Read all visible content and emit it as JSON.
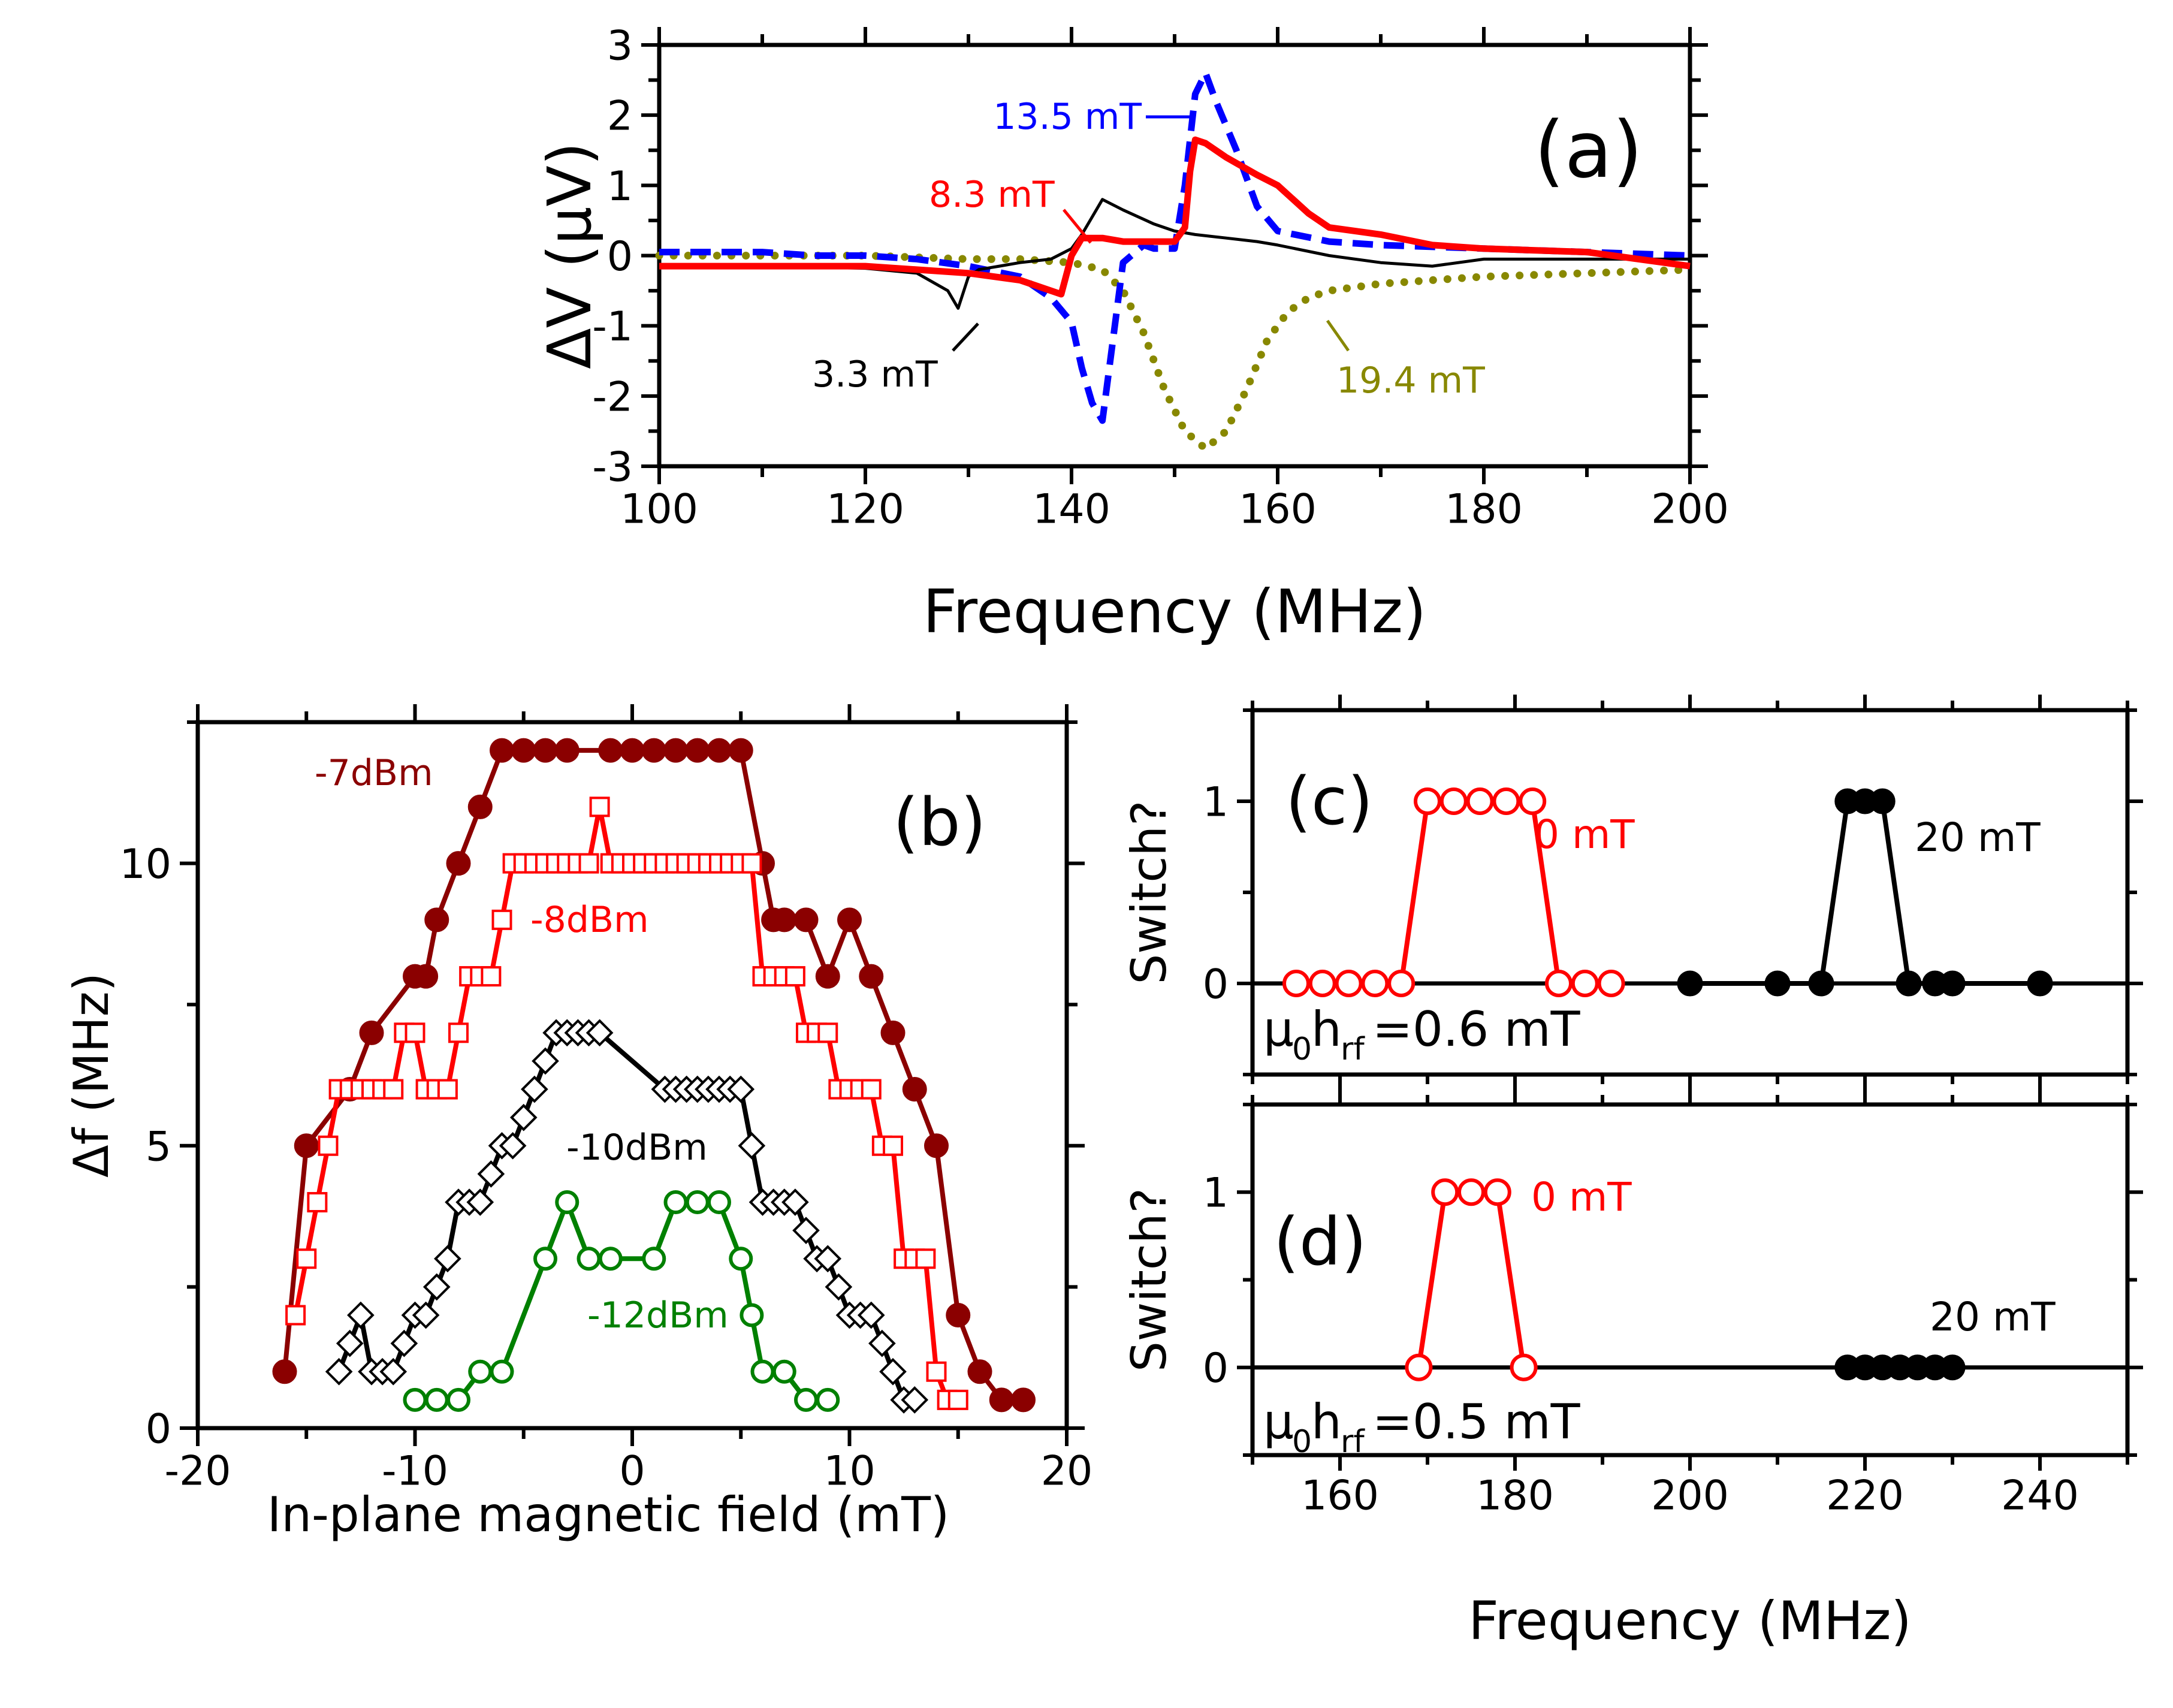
{
  "chart_data": [
    {
      "id": "a",
      "type": "line",
      "panel_label": "(a)",
      "xlabel": "Frequency (MHz)",
      "ylabel": "ΔV (μV)",
      "xlim": [
        100,
        200
      ],
      "ylim": [
        -3,
        3
      ],
      "xticks": [
        100,
        120,
        140,
        160,
        180,
        200
      ],
      "yticks": [
        -3,
        -2,
        -1,
        0,
        1,
        2,
        3
      ],
      "series": [
        {
          "name": "3.3 mT",
          "color": "#000000",
          "style": "thin",
          "x": [
            100,
            110,
            120,
            125,
            128,
            129,
            130,
            131,
            133,
            135,
            138,
            140,
            141,
            142,
            143,
            145,
            148,
            150,
            152,
            155,
            158,
            160,
            165,
            170,
            175,
            180,
            190,
            200
          ],
          "y": [
            -0.15,
            -0.15,
            -0.18,
            -0.25,
            -0.5,
            -0.75,
            -0.3,
            -0.2,
            -0.15,
            -0.1,
            -0.05,
            0.1,
            0.3,
            0.55,
            0.8,
            0.65,
            0.45,
            0.35,
            0.3,
            0.25,
            0.2,
            0.15,
            0.0,
            -0.1,
            -0.15,
            -0.05,
            -0.05,
            -0.05
          ]
        },
        {
          "name": "8.3 mT",
          "color": "#ff0000",
          "style": "thick",
          "x": [
            100,
            110,
            120,
            130,
            135,
            139,
            140,
            141,
            143,
            145,
            148,
            150,
            151,
            151.5,
            152,
            153,
            155,
            158,
            160,
            163,
            165,
            170,
            175,
            180,
            190,
            200
          ],
          "y": [
            -0.15,
            -0.15,
            -0.15,
            -0.25,
            -0.35,
            -0.55,
            0.0,
            0.25,
            0.25,
            0.2,
            0.2,
            0.2,
            0.4,
            1.2,
            1.65,
            1.6,
            1.4,
            1.15,
            1.0,
            0.6,
            0.4,
            0.3,
            0.15,
            0.1,
            0.05,
            -0.15
          ]
        },
        {
          "name": "13.5 mT",
          "color": "#0000ff",
          "style": "dashed",
          "x": [
            100,
            105,
            110,
            115,
            120,
            125,
            130,
            135,
            138,
            140,
            141,
            142,
            143,
            145,
            147,
            148,
            149,
            150,
            151,
            152,
            153,
            154,
            156,
            158,
            160,
            165,
            170,
            180,
            190,
            200
          ],
          "y": [
            0.05,
            0.05,
            0.05,
            0.0,
            0.0,
            -0.05,
            -0.15,
            -0.3,
            -0.6,
            -0.95,
            -1.6,
            -2.1,
            -2.35,
            -0.1,
            0.15,
            0.1,
            0.1,
            0.1,
            1.0,
            2.3,
            2.6,
            2.2,
            1.5,
            0.7,
            0.35,
            0.2,
            0.15,
            0.1,
            0.05,
            0.0
          ]
        },
        {
          "name": "19.4 mT",
          "color": "#888800",
          "style": "dotted",
          "x": [
            100,
            110,
            120,
            130,
            135,
            140,
            143,
            145,
            147,
            149,
            151,
            153,
            155,
            157,
            159,
            161,
            163,
            165,
            170,
            175,
            180,
            190,
            200
          ],
          "y": [
            0.0,
            0.0,
            0.0,
            -0.05,
            -0.05,
            -0.1,
            -0.2,
            -0.5,
            -1.1,
            -1.9,
            -2.5,
            -2.75,
            -2.5,
            -1.9,
            -1.2,
            -0.8,
            -0.6,
            -0.5,
            -0.4,
            -0.35,
            -0.3,
            -0.25,
            -0.2
          ]
        }
      ],
      "annotations": [
        "13.5 mT",
        "8.3 mT",
        "3.3 mT",
        "19.4 mT"
      ]
    },
    {
      "id": "b",
      "type": "line",
      "panel_label": "(b)",
      "xlabel": "In-plane magnetic field (mT)",
      "ylabel": "Δf (MHz)",
      "xlim": [
        -20,
        20
      ],
      "ylim": [
        0,
        12.5
      ],
      "xticks": [
        -20,
        -10,
        0,
        10,
        20
      ],
      "yticks": [
        0,
        5,
        10
      ],
      "series": [
        {
          "name": "-7dBm",
          "color": "#8b0000",
          "marker": "filled-circle",
          "x": [
            -16,
            -15,
            -13,
            -12,
            -10,
            -9.5,
            -9,
            -8,
            -7,
            -6,
            -5,
            -4,
            -3,
            -1,
            0,
            1,
            2,
            3,
            4,
            5,
            6,
            6.5,
            7,
            8,
            9,
            10,
            11,
            12,
            13,
            14,
            15,
            16,
            17,
            18
          ],
          "y": [
            1,
            5,
            6,
            7,
            8,
            8,
            9,
            10,
            11,
            12,
            12,
            12,
            12,
            12,
            12,
            12,
            12,
            12,
            12,
            12,
            10,
            9,
            9,
            9,
            8,
            9,
            8,
            7,
            6,
            5,
            2,
            1,
            0.5,
            0.5
          ]
        },
        {
          "name": "-8dBm",
          "color": "#ff0000",
          "marker": "open-square",
          "x": [
            -15.5,
            -15,
            -14.5,
            -14,
            -13.5,
            -13,
            -12.5,
            -12,
            -11.5,
            -11,
            -10.5,
            -10,
            -9.5,
            -9,
            -8.5,
            -8,
            -7.5,
            -7,
            -6.5,
            -6,
            -5.5,
            -5,
            -4.5,
            -4,
            -3.5,
            -3,
            -2.5,
            -2,
            -1.5,
            -1,
            -0.5,
            0,
            0.5,
            1,
            1.5,
            2,
            2.5,
            3,
            3.5,
            4,
            4.5,
            5,
            5.5,
            6,
            6.5,
            7,
            7.5,
            8,
            8.5,
            9,
            9.5,
            10,
            10.5,
            11,
            11.5,
            12,
            12.5,
            13,
            13.5,
            14,
            14.5,
            15
          ],
          "y": [
            2,
            3,
            4,
            5,
            6,
            6,
            6,
            6,
            6,
            6,
            7,
            7,
            6,
            6,
            6,
            7,
            8,
            8,
            8,
            9,
            10,
            10,
            10,
            10,
            10,
            10,
            10,
            10,
            11,
            10,
            10,
            10,
            10,
            10,
            10,
            10,
            10,
            10,
            10,
            10,
            10,
            10,
            10,
            8,
            8,
            8,
            8,
            7,
            7,
            7,
            6,
            6,
            6,
            6,
            5,
            5,
            3,
            3,
            3,
            1,
            0.5,
            0.5
          ]
        },
        {
          "name": "-10dBm",
          "color": "#000000",
          "marker": "open-diamond",
          "x": [
            -13.5,
            -13,
            -12.5,
            -12,
            -11.5,
            -11,
            -10.5,
            -10,
            -9.5,
            -9,
            -8.5,
            -8,
            -7.5,
            -7,
            -6.5,
            -6,
            -5.5,
            -5,
            -4.5,
            -4,
            -3.5,
            -3,
            -2.5,
            -2,
            -1.5,
            1.5,
            2,
            2.5,
            3,
            3.5,
            4,
            4.5,
            5,
            5.5,
            6,
            6.5,
            7,
            7.5,
            8,
            8.5,
            9,
            9.5,
            10,
            10.5,
            11,
            11.5,
            12,
            12.5,
            13
          ],
          "y": [
            1,
            1.5,
            2,
            1,
            1,
            1,
            1.5,
            2,
            2,
            2.5,
            3,
            4,
            4,
            4,
            4.5,
            5,
            5,
            5.5,
            6,
            6.5,
            7,
            7,
            7,
            7,
            7,
            6,
            6,
            6,
            6,
            6,
            6,
            6,
            6,
            5,
            4,
            4,
            4,
            4,
            3.5,
            3,
            3,
            2.5,
            2,
            2,
            2,
            1.5,
            1,
            0.5,
            0.5
          ]
        },
        {
          "name": "-12dBm",
          "color": "#008000",
          "marker": "open-circle",
          "x": [
            -10,
            -9,
            -8,
            -7,
            -6,
            -4,
            -3,
            -2,
            -1,
            1,
            2,
            3,
            4,
            5,
            5.5,
            6,
            7,
            8,
            9
          ],
          "y": [
            0.5,
            0.5,
            0.5,
            1,
            1,
            3,
            4,
            3,
            3,
            3,
            4,
            4,
            4,
            3,
            2,
            1,
            1,
            0.5,
            0.5
          ]
        }
      ],
      "annotations": [
        "-7dBm",
        "-8dBm",
        "-10dBm",
        "-12dBm"
      ]
    },
    {
      "id": "c",
      "type": "line",
      "panel_label": "(c)",
      "ylabel": "Switch?",
      "xlim": [
        150,
        250
      ],
      "ylim": [
        -0.5,
        1.5
      ],
      "xticks": [
        160,
        180,
        200,
        220,
        240
      ],
      "yticks": [
        0,
        1
      ],
      "series": [
        {
          "name": "0 mT",
          "color": "#ff0000",
          "marker": "open-circle",
          "x": [
            155,
            158,
            161,
            164,
            167,
            170,
            173,
            176,
            179,
            182,
            185,
            188,
            191
          ],
          "y": [
            0,
            0,
            0,
            0,
            0,
            1,
            1,
            1,
            1,
            1,
            0,
            0,
            0
          ]
        },
        {
          "name": "20 mT",
          "color": "#000000",
          "marker": "filled-circle",
          "x": [
            200,
            210,
            215,
            218,
            220,
            222,
            225,
            228,
            230,
            240
          ],
          "y": [
            0,
            0,
            0,
            1,
            1,
            1,
            0,
            0,
            0,
            0
          ]
        }
      ],
      "annotations": [
        "0 mT",
        "20 mT"
      ],
      "condition_text": {
        "prefix": "μ",
        "sub1": "0",
        "mid": "h",
        "sub2": "rf",
        "value": "=0.6 mT"
      }
    },
    {
      "id": "d",
      "type": "line",
      "panel_label": "(d)",
      "xlabel": "Frequency (MHz)",
      "ylabel": "Switch?",
      "xlim": [
        150,
        250
      ],
      "ylim": [
        -0.5,
        1.5
      ],
      "xticks": [
        160,
        180,
        200,
        220,
        240
      ],
      "yticks": [
        0,
        1
      ],
      "series": [
        {
          "name": "0 mT",
          "color": "#ff0000",
          "marker": "open-circle",
          "x": [
            169,
            172,
            175,
            178,
            181
          ],
          "y": [
            0,
            1,
            1,
            1,
            0
          ]
        },
        {
          "name": "20 mT",
          "color": "#000000",
          "marker": "filled-circle",
          "x": [
            218,
            220,
            222,
            224,
            226,
            228,
            230
          ],
          "y": [
            0,
            0,
            0,
            0,
            0,
            0,
            0
          ]
        }
      ],
      "annotations": [
        "0 mT",
        "20 mT"
      ],
      "condition_text": {
        "prefix": "μ",
        "sub1": "0",
        "mid": "h",
        "sub2": "rf",
        "value": "=0.5 mT"
      }
    }
  ]
}
